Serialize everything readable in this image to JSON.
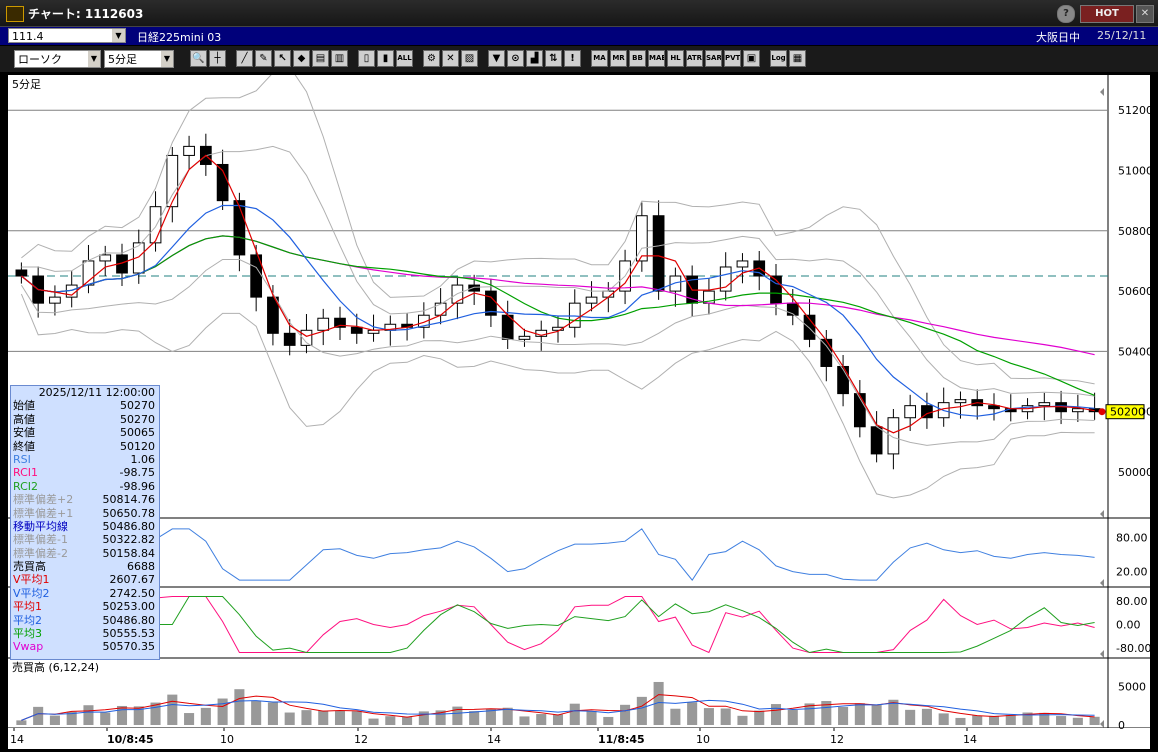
{
  "window": {
    "title": "チャート: 1112603",
    "hot_label": "HOT",
    "help_label": "?",
    "close_label": "✕"
  },
  "symbol_bar": {
    "code": "111.4",
    "name": "日経225mini 03",
    "market": "大阪日中",
    "date": "25/12/11"
  },
  "toolbar": {
    "chart_type": "ローソク",
    "interval": "5分足",
    "icons": [
      "zoom-icon",
      "cursor-icon",
      "draw-line-icon",
      "pen-icon",
      "arrow-icon",
      "fill-icon",
      "document-icon",
      "trash-icon",
      "candle-icon",
      "candle2-icon",
      "all-icon",
      "settings-icon",
      "tools-icon",
      "palette-icon",
      "alert-icon",
      "search-chart-icon",
      "chart-icon",
      "compare-icon",
      "exclamation-icon",
      "ma-icon",
      "mr-icon",
      "bb-icon",
      "mae-icon",
      "hl-icon",
      "atr-icon",
      "sar-icon",
      "pvt-icon",
      "frame-icon",
      "log-icon",
      "export-icon"
    ],
    "icon_labels": {
      "all": "ALL",
      "ma": "MA",
      "mr": "MR",
      "bb": "BB",
      "mae": "MAE",
      "hl": "HL",
      "atr": "ATR",
      "sar": "SAR",
      "pvt": "PVT",
      "log": "Log"
    }
  },
  "chart": {
    "pane_label": "5分足",
    "price_axis": [
      "51200",
      "51000",
      "50800",
      "50600",
      "50400",
      "50200",
      "50000"
    ],
    "current_price": "50200",
    "rsi_axis": [
      "80.00",
      "20.00"
    ],
    "rci_axis": [
      "80.00",
      "0.00",
      "-80.00"
    ],
    "volume_label": "売買高 (6,12,24)",
    "volume_axis": [
      "5000",
      "0"
    ],
    "time_axis": [
      "14",
      "10/8:45",
      "10",
      "12",
      "14",
      "11/8:45",
      "10",
      "12",
      "14"
    ],
    "colors": {
      "up": "#ffffff",
      "down": "#000000",
      "ma_short": "#e00000",
      "ma_mid": "#2060e0",
      "ma_long": "#00a000",
      "ma_xlong": "#e000d0",
      "bands": "#b0b0b0",
      "rsi": "#4080e0",
      "rci1": "#ff1080",
      "rci2": "#20a020"
    }
  },
  "chart_data": {
    "type": "candlestick",
    "title": "日経225mini 03",
    "interval": "5分足",
    "ylim": [
      49800,
      51300
    ],
    "x_labels": [
      "14",
      "10/8:45",
      "10",
      "12",
      "14",
      "11/8:45",
      "10",
      "12",
      "14"
    ],
    "approx_close": [
      50650,
      50560,
      50580,
      50620,
      50700,
      50720,
      50660,
      50760,
      50880,
      51050,
      51080,
      51020,
      50900,
      50720,
      50580,
      50460,
      50420,
      50470,
      50510,
      50480,
      50460,
      50470,
      50490,
      50480,
      50520,
      50560,
      50620,
      50600,
      50520,
      50440,
      50450,
      50470,
      50480,
      50560,
      50580,
      50600,
      50700,
      50850,
      50600,
      50650,
      50560,
      50600,
      50680,
      50700,
      50650,
      50560,
      50520,
      50440,
      50350,
      50260,
      50150,
      50060,
      50180,
      50220,
      50180,
      50230,
      50240,
      50220,
      50210,
      50200,
      50220,
      50230,
      50200,
      50210,
      50200
    ],
    "rsi": {
      "name": "RSI",
      "axis": [
        20,
        80
      ]
    },
    "rci": {
      "axis": [
        -80,
        80
      ]
    }
  },
  "info": {
    "datetime": "2025/12/11 12:00:00",
    "rows": [
      {
        "k": "始値",
        "v": "50270",
        "c": "#000000"
      },
      {
        "k": "高値",
        "v": "50270",
        "c": "#000000"
      },
      {
        "k": "安値",
        "v": "50065",
        "c": "#000000"
      },
      {
        "k": "終値",
        "v": "50120",
        "c": "#000000"
      },
      {
        "k": "RSI",
        "v": "1.06",
        "c": "#4080e0"
      },
      {
        "k": "RCI1",
        "v": "-98.75",
        "c": "#ff1080"
      },
      {
        "k": "RCI2",
        "v": "-98.96",
        "c": "#20a020"
      },
      {
        "k": "標準偏差+2",
        "v": "50814.76",
        "c": "#9a9a9a"
      },
      {
        "k": "標準偏差+1",
        "v": "50650.78",
        "c": "#9a9a9a"
      },
      {
        "k": "移動平均線",
        "v": "50486.80",
        "c": "#0000c0"
      },
      {
        "k": "標準偏差-1",
        "v": "50322.82",
        "c": "#9a9a9a"
      },
      {
        "k": "標準偏差-2",
        "v": "50158.84",
        "c": "#9a9a9a"
      },
      {
        "k": "売買高",
        "v": "6688",
        "c": "#000000"
      },
      {
        "k": "V平均1",
        "v": "2607.67",
        "c": "#e00000"
      },
      {
        "k": "V平均2",
        "v": "2742.50",
        "c": "#2060e0"
      },
      {
        "k": "平均1",
        "v": "50253.00",
        "c": "#e00000"
      },
      {
        "k": "平均2",
        "v": "50486.80",
        "c": "#2060e0"
      },
      {
        "k": "平均3",
        "v": "50555.53",
        "c": "#00a000"
      },
      {
        "k": "Vwap",
        "v": "50570.35",
        "c": "#e000d0"
      }
    ]
  }
}
